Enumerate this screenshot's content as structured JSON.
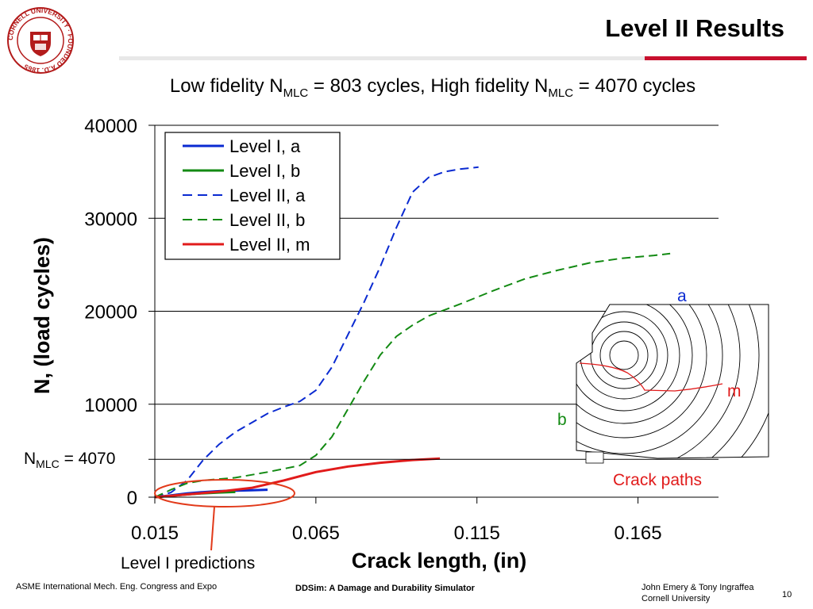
{
  "slide": {
    "title": "Level II Results",
    "subtitle_parts": {
      "a": "Low fidelity N",
      "a_sub": "MLC",
      "b": " = 803 cycles, High fidelity N",
      "b_sub": "MLC",
      "c": " = 4070 cycles"
    },
    "logo_text": "CORNELL UNIVERSITY · FOUNDED A.D. 1865",
    "footer_left": "ASME International Mech. Eng. Congress and Expo",
    "footer_center": "DDSim: A Damage and Durability Simulator",
    "footer_right_line1": "John Emery & Tony Ingraffea",
    "footer_right_line2": "Cornell University",
    "page_number": "10",
    "colors": {
      "accent_red": "#c8102e",
      "blue": "#0a2ad1",
      "green": "#138a13",
      "red": "#e11b1b"
    }
  },
  "chart_data": {
    "type": "line",
    "xlabel": "Crack length, (in)",
    "ylabel": "N, (load cycles)",
    "xlim": [
      0.015,
      0.19
    ],
    "ylim": [
      0,
      40000
    ],
    "xticks": [
      "0.015",
      "0.065",
      "0.115",
      "0.165"
    ],
    "xtick_values": [
      0.015,
      0.065,
      0.115,
      0.165
    ],
    "yticks": [
      "0",
      "10000",
      "20000",
      "30000",
      "40000"
    ],
    "ytick_values": [
      0,
      10000,
      20000,
      30000,
      40000
    ],
    "grid": "horizontal",
    "legend_position": "top-left",
    "series": [
      {
        "name": "Level I, a",
        "color": "#0a2ad1",
        "dash": "solid",
        "points": [
          [
            0.015,
            0
          ],
          [
            0.02,
            200
          ],
          [
            0.025,
            400
          ],
          [
            0.03,
            550
          ],
          [
            0.035,
            650
          ],
          [
            0.04,
            700
          ],
          [
            0.045,
            750
          ],
          [
            0.05,
            800
          ]
        ]
      },
      {
        "name": "Level I, b",
        "color": "#138a13",
        "dash": "solid",
        "points": [
          [
            0.015,
            0
          ],
          [
            0.02,
            150
          ],
          [
            0.025,
            300
          ],
          [
            0.03,
            420
          ],
          [
            0.035,
            500
          ],
          [
            0.04,
            560
          ]
        ]
      },
      {
        "name": "Level II, a",
        "color": "#0a2ad1",
        "dash": "dashed",
        "points": [
          [
            0.015,
            0
          ],
          [
            0.02,
            500
          ],
          [
            0.025,
            1800
          ],
          [
            0.03,
            4000
          ],
          [
            0.035,
            5700
          ],
          [
            0.04,
            7000
          ],
          [
            0.045,
            8000
          ],
          [
            0.05,
            9000
          ],
          [
            0.055,
            9700
          ],
          [
            0.06,
            10300
          ],
          [
            0.065,
            11500
          ],
          [
            0.07,
            14000
          ],
          [
            0.075,
            17500
          ],
          [
            0.08,
            21000
          ],
          [
            0.085,
            24800
          ],
          [
            0.09,
            29000
          ],
          [
            0.095,
            32800
          ],
          [
            0.1,
            34400
          ],
          [
            0.105,
            35000
          ],
          [
            0.11,
            35300
          ],
          [
            0.1155,
            35500
          ]
        ]
      },
      {
        "name": "Level II, b",
        "color": "#138a13",
        "dash": "dashed",
        "points": [
          [
            0.015,
            0
          ],
          [
            0.02,
            800
          ],
          [
            0.025,
            1500
          ],
          [
            0.03,
            1800
          ],
          [
            0.04,
            2100
          ],
          [
            0.05,
            2700
          ],
          [
            0.06,
            3400
          ],
          [
            0.065,
            4500
          ],
          [
            0.07,
            6500
          ],
          [
            0.075,
            9500
          ],
          [
            0.08,
            12500
          ],
          [
            0.085,
            15300
          ],
          [
            0.09,
            17300
          ],
          [
            0.095,
            18500
          ],
          [
            0.1,
            19500
          ],
          [
            0.11,
            20800
          ],
          [
            0.12,
            22200
          ],
          [
            0.13,
            23500
          ],
          [
            0.14,
            24400
          ],
          [
            0.15,
            25200
          ],
          [
            0.16,
            25700
          ],
          [
            0.17,
            26000
          ],
          [
            0.175,
            26200
          ]
        ]
      },
      {
        "name": "Level II, m",
        "color": "#e11b1b",
        "dash": "solid",
        "points": [
          [
            0.015,
            0
          ],
          [
            0.025,
            300
          ],
          [
            0.035,
            600
          ],
          [
            0.045,
            1000
          ],
          [
            0.055,
            1800
          ],
          [
            0.065,
            2700
          ],
          [
            0.075,
            3300
          ],
          [
            0.085,
            3700
          ],
          [
            0.095,
            4000
          ],
          [
            0.1035,
            4150
          ]
        ]
      }
    ],
    "reference_line": {
      "y": 4070
    },
    "annotations": {
      "nmlc_main": "N",
      "nmlc_sub": "MLC",
      "nmlc_rest": " = 4070",
      "level1_predictions": "Level I predictions",
      "inset_label_a": "a",
      "inset_label_b": "b",
      "inset_label_m": "m",
      "inset_caption": "Crack paths"
    }
  }
}
